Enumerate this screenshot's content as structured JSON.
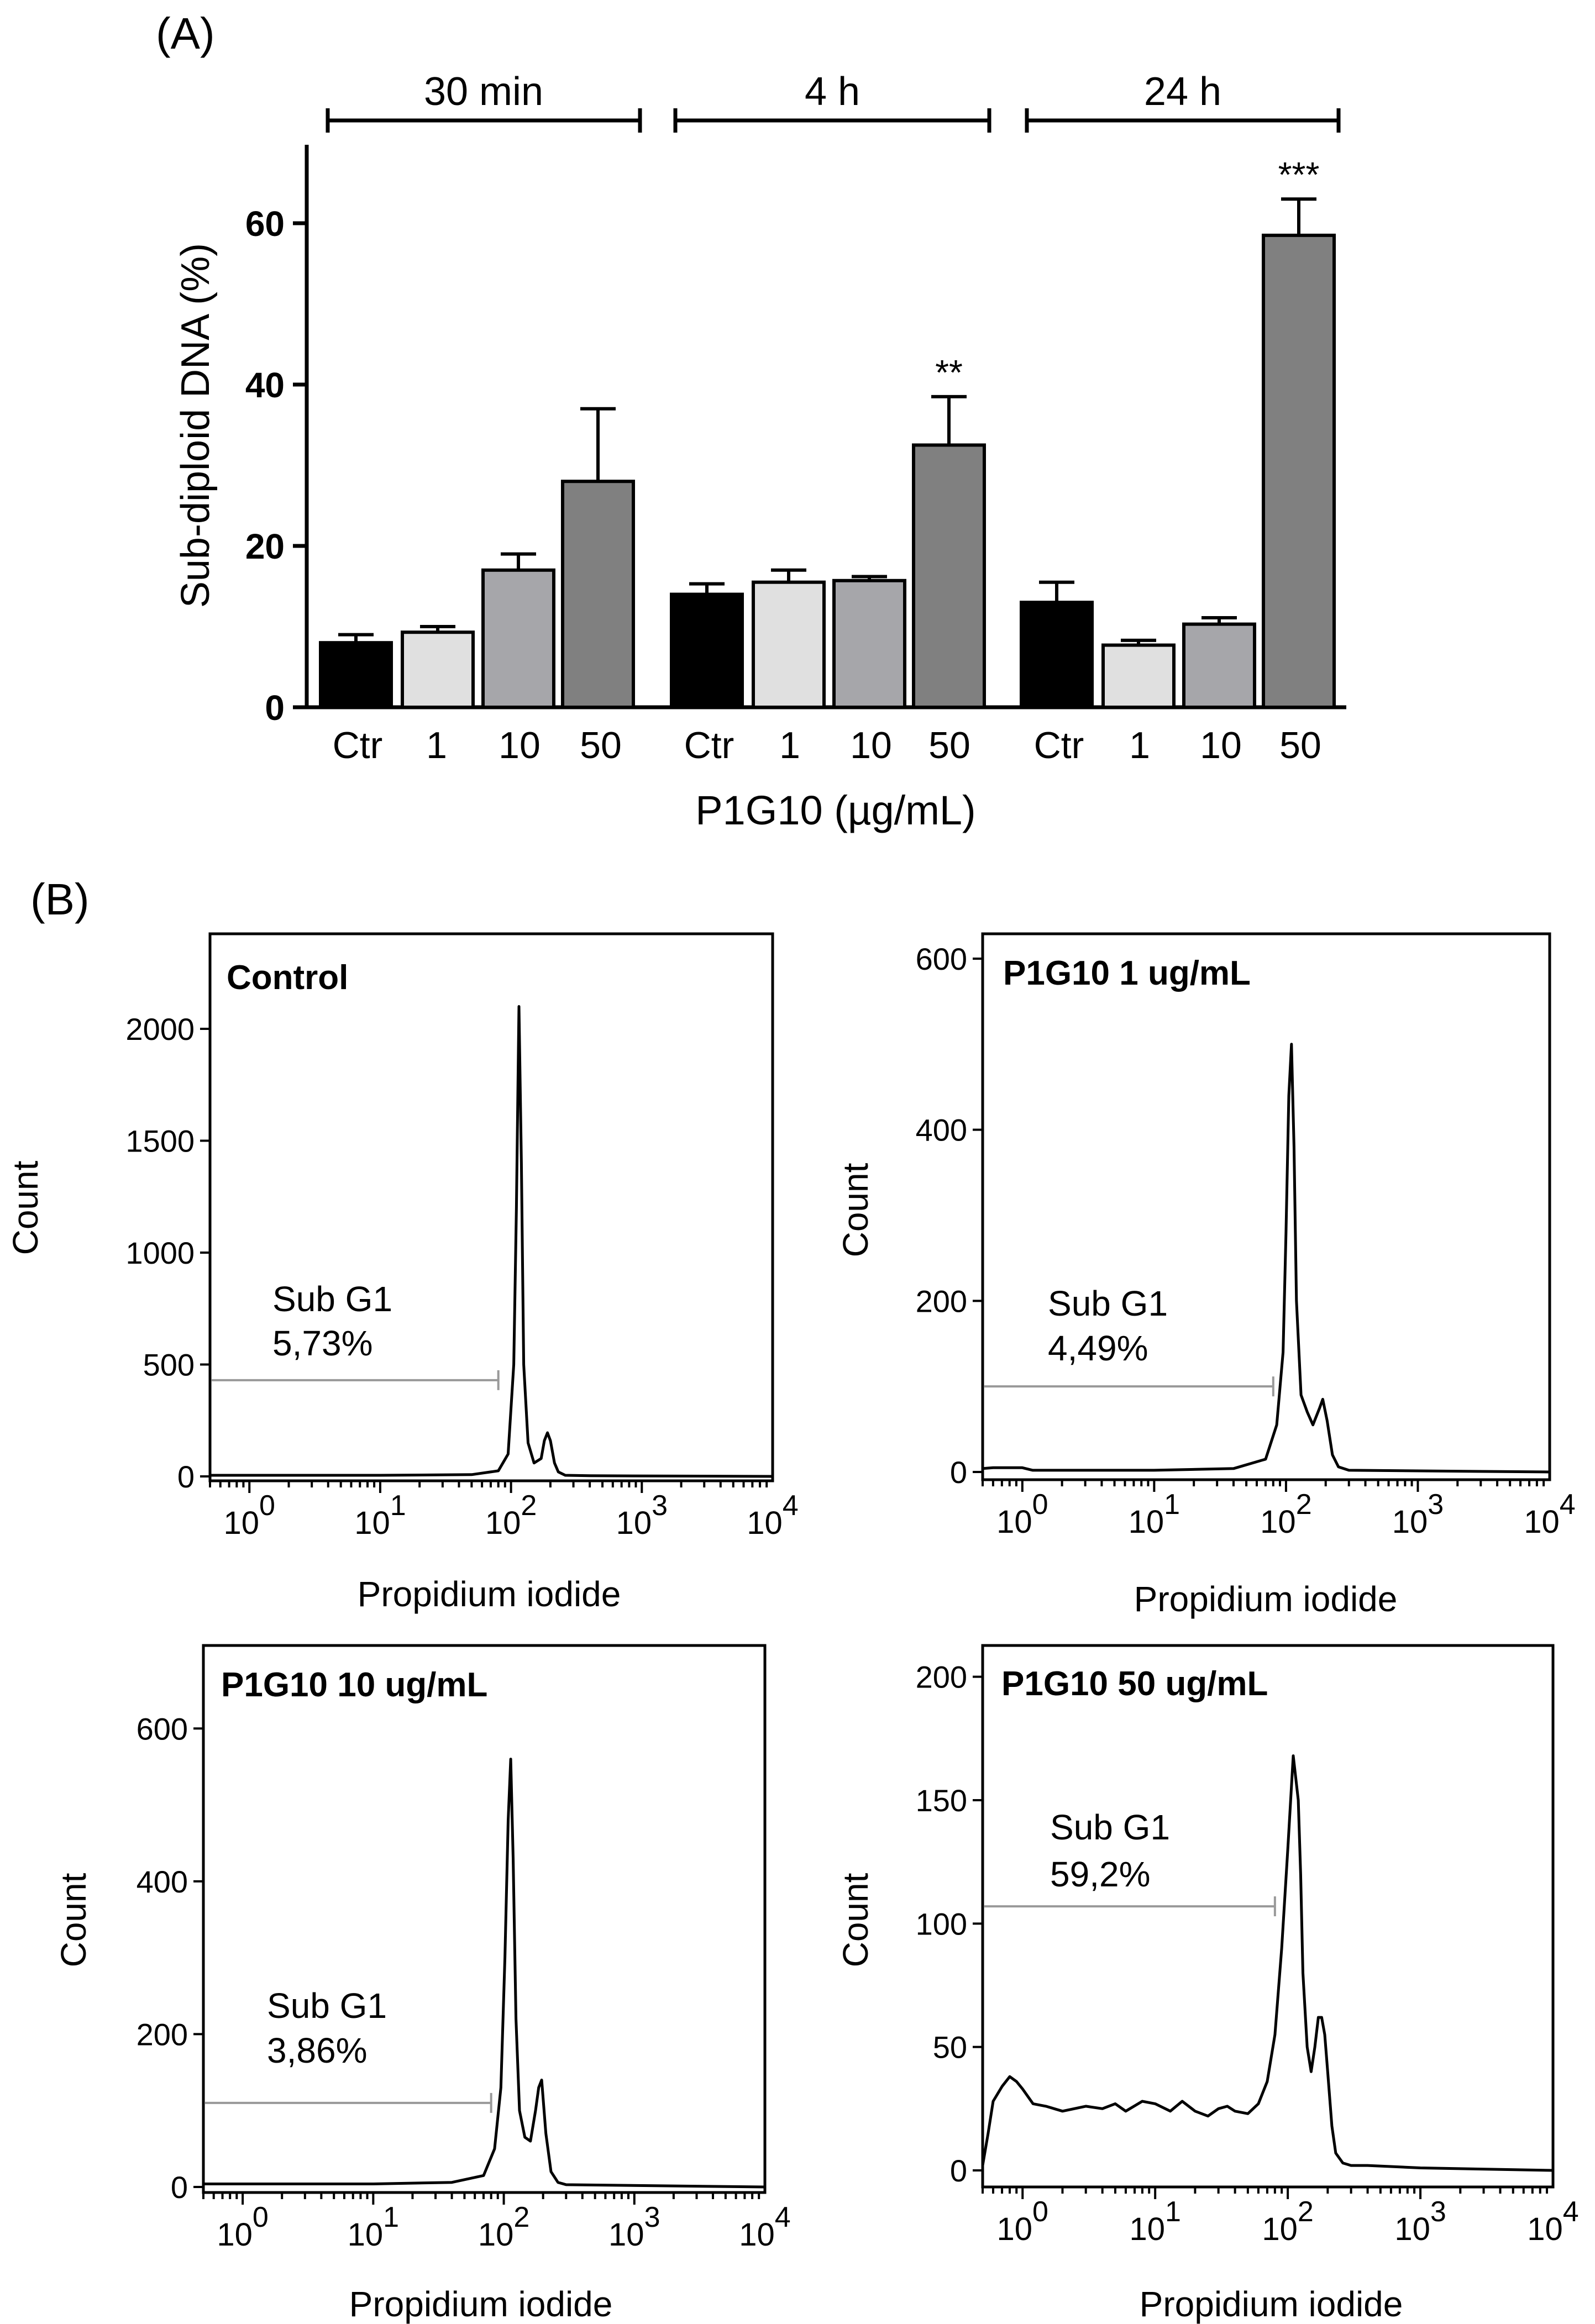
{
  "panel_a": {
    "label": "(A)",
    "groups": [
      {
        "label": "30 min",
        "significance": ""
      },
      {
        "label": "4 h",
        "significance": "**"
      },
      {
        "label": "24 h",
        "significance": "***"
      }
    ],
    "categories": [
      "Ctr",
      "1",
      "10",
      "50"
    ],
    "bar_colors": [
      "#000000",
      "#e0e0e0",
      "#a6a6aa",
      "#808080"
    ],
    "xlabel": "P1G10 (µg/mL)",
    "ylabel": "Sub-diploid DNA (%)",
    "yticks": [
      "0",
      "20",
      "40",
      "60"
    ]
  },
  "panel_b": {
    "label": "(B)",
    "xlabel": "Propidium iodide",
    "ylabel": "Count",
    "gate_label": "Sub G1"
  },
  "chart_data": [
    {
      "type": "bar",
      "title": "",
      "xlabel": "P1G10 (µg/mL)",
      "ylabel": "Sub-diploid DNA (%)",
      "ylim": [
        0,
        70
      ],
      "categories": [
        "Ctr",
        "1",
        "10",
        "50"
      ],
      "series": [
        {
          "name": "30 min",
          "values": [
            8,
            9.3,
            17,
            28
          ],
          "errors": [
            1,
            0.7,
            2,
            9
          ]
        },
        {
          "name": "4 h",
          "values": [
            14,
            15.5,
            15.7,
            32.5
          ],
          "errors": [
            1.3,
            1.5,
            0.5,
            6
          ]
        },
        {
          "name": "24 h",
          "values": [
            13,
            7.7,
            10.3,
            58.5
          ],
          "errors": [
            2.5,
            0.6,
            0.8,
            4.5
          ]
        }
      ],
      "annotations": [
        {
          "series": "4 h",
          "category": "50",
          "text": "**"
        },
        {
          "series": "24 h",
          "category": "50",
          "text": "***"
        }
      ]
    },
    {
      "type": "line",
      "title": "Control",
      "xlabel": "Propidium iodide",
      "ylabel": "Count",
      "xscale": "log",
      "xlim": [
        0.5,
        10000
      ],
      "xtick_values": [
        1,
        10,
        100,
        1000,
        10000
      ],
      "xtick_labels": [
        "10^0",
        "10^1",
        "10^2",
        "10^3",
        "10^4"
      ],
      "ylim": [
        0,
        2400
      ],
      "yticks": [
        0,
        500,
        1000,
        1500,
        2000
      ],
      "gate": {
        "label": "Sub G1",
        "percent": "5,73%",
        "x_end": 80,
        "y_level": 430
      },
      "x": [
        0.5,
        10,
        50,
        80,
        95,
        105,
        110,
        115,
        120,
        125,
        135,
        150,
        170,
        180,
        190,
        200,
        215,
        230,
        260,
        400,
        10000
      ],
      "y": [
        5,
        5,
        8,
        25,
        100,
        500,
        1200,
        2100,
        1400,
        500,
        150,
        60,
        80,
        160,
        195,
        160,
        60,
        20,
        5,
        3,
        0
      ]
    },
    {
      "type": "line",
      "title": "P1G10 1 ug/mL",
      "xlabel": "Propidium iodide",
      "ylabel": "Count",
      "xscale": "log",
      "xlim": [
        0.5,
        10000
      ],
      "xtick_values": [
        1,
        10,
        100,
        1000,
        10000
      ],
      "xtick_labels": [
        "10^0",
        "10^1",
        "10^2",
        "10^3",
        "10^4"
      ],
      "ylim": [
        0,
        620
      ],
      "yticks": [
        0,
        200,
        400,
        600
      ],
      "gate": {
        "label": "Sub G1",
        "percent": "4,49%",
        "x_end": 80,
        "y_level": 100
      },
      "x": [
        0.5,
        0.6,
        1,
        1.2,
        2,
        10,
        40,
        70,
        85,
        95,
        100,
        105,
        110,
        115,
        120,
        130,
        145,
        160,
        180,
        190,
        205,
        225,
        250,
        300,
        10000
      ],
      "y": [
        4,
        5,
        5,
        2,
        2,
        2,
        4,
        15,
        55,
        140,
        280,
        440,
        500,
        380,
        200,
        90,
        70,
        55,
        75,
        85,
        60,
        20,
        6,
        2,
        0
      ]
    },
    {
      "type": "line",
      "title": "P1G10 10 ug/mL",
      "xlabel": "Propidium iodide",
      "ylabel": "Count",
      "xscale": "log",
      "xlim": [
        0.5,
        10000
      ],
      "xtick_values": [
        1,
        10,
        100,
        1000,
        10000
      ],
      "xtick_labels": [
        "10^0",
        "10^1",
        "10^2",
        "10^3",
        "10^4"
      ],
      "ylim": [
        0,
        700
      ],
      "yticks": [
        0,
        200,
        400,
        600
      ],
      "gate": {
        "label": "Sub G1",
        "percent": "3,86%",
        "x_end": 80,
        "y_level": 110
      },
      "x": [
        0.5,
        10,
        40,
        70,
        85,
        95,
        102,
        108,
        113,
        118,
        124,
        132,
        145,
        160,
        175,
        185,
        195,
        210,
        230,
        260,
        300,
        10000
      ],
      "y": [
        4,
        4,
        6,
        15,
        50,
        130,
        300,
        480,
        560,
        430,
        220,
        100,
        65,
        60,
        100,
        130,
        140,
        70,
        20,
        6,
        3,
        0
      ]
    },
    {
      "type": "line",
      "title": "P1G10 50 ug/mL",
      "xlabel": "Propidium iodide",
      "ylabel": "Count",
      "xscale": "log",
      "xlim": [
        0.5,
        10000
      ],
      "xtick_values": [
        1,
        10,
        100,
        1000,
        10000
      ],
      "xtick_labels": [
        "10^0",
        "10^1",
        "10^2",
        "10^3",
        "10^4"
      ],
      "ylim": [
        0,
        210
      ],
      "yticks": [
        0,
        50,
        100,
        150,
        200
      ],
      "gate": {
        "label": "Sub G1",
        "percent": "59,2%",
        "x_end": 80,
        "y_level": 107
      },
      "x": [
        0.5,
        0.55,
        0.6,
        0.7,
        0.8,
        0.9,
        1.0,
        1.2,
        1.5,
        2,
        3,
        4,
        5,
        6,
        8,
        10,
        13,
        16,
        20,
        25,
        30,
        35,
        40,
        50,
        60,
        70,
        80,
        90,
        100,
        110,
        120,
        125,
        130,
        140,
        150,
        160,
        170,
        180,
        190,
        200,
        215,
        230,
        260,
        300,
        400,
        1000,
        10000
      ],
      "y": [
        2,
        15,
        28,
        34,
        38,
        36,
        33,
        27,
        26,
        24,
        26,
        25,
        27,
        24,
        28,
        27,
        24,
        28,
        24,
        22,
        25,
        26,
        24,
        23,
        27,
        36,
        55,
        90,
        130,
        168,
        150,
        120,
        80,
        50,
        40,
        50,
        62,
        62,
        55,
        40,
        18,
        7,
        3,
        2,
        2,
        1,
        0
      ]
    }
  ]
}
